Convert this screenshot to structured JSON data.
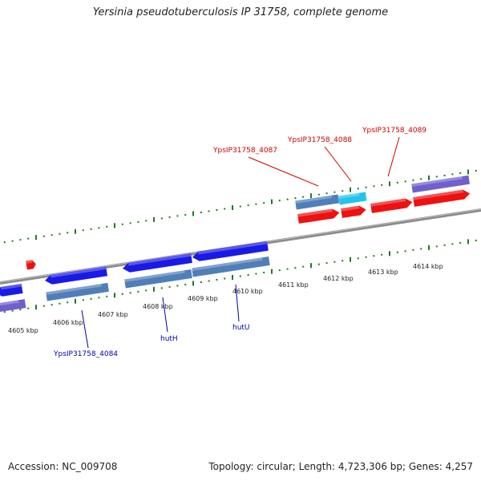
{
  "title": "Yersinia pseudotuberculosis IP 31758, complete genome",
  "footer": {
    "accession": "Accession: NC_009708",
    "topology": "Topology: circular; Length: 4,723,306 bp; Genes: 4,257"
  },
  "colors": {
    "forward_gene": "#ee1111",
    "reverse_gene": "#1a1ae6",
    "cds_steelblue": "#4f7fb8",
    "cds_lightblue": "#22c4ee",
    "cds_purple": "#7060cc",
    "backbone": "#8a8a8a",
    "tick": "#227722",
    "label_forward": "#cc0000",
    "label_reverse": "#0000aa"
  },
  "scale": {
    "unit": "kbp",
    "labels": [
      "4605 kbp",
      "4606 kbp",
      "4607 kbp",
      "4608 kbp",
      "4609 kbp",
      "4610 kbp",
      "4611 kbp",
      "4612 kbp",
      "4613 kbp",
      "4614 kbp"
    ]
  },
  "gene_labels": [
    {
      "name": "YpsIP31758_4087",
      "strand": "forward"
    },
    {
      "name": "YpsIP31758_4088",
      "strand": "forward"
    },
    {
      "name": "YpsIP31758_4089",
      "strand": "forward"
    },
    {
      "name": "YpsIP31758_4084",
      "strand": "reverse"
    },
    {
      "name": "hutH",
      "strand": "reverse"
    },
    {
      "name": "hutU",
      "strand": "reverse"
    }
  ]
}
